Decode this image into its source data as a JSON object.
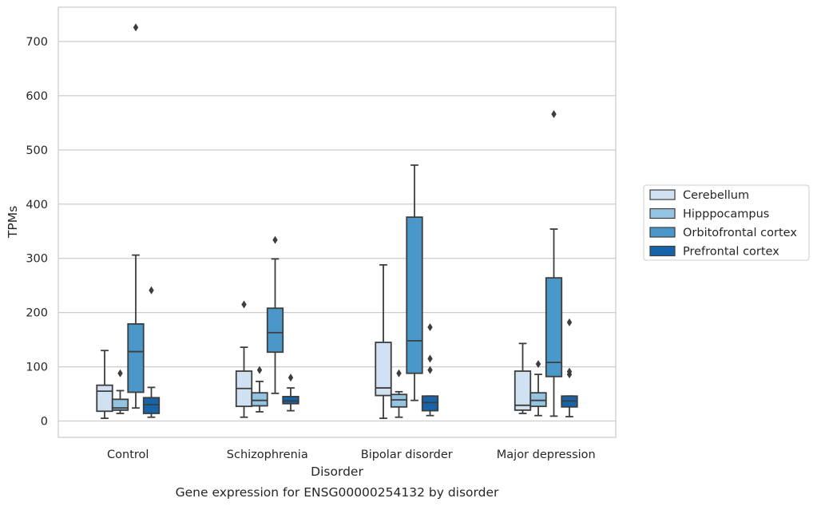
{
  "chart_data": {
    "type": "box",
    "xlabel": "Disorder",
    "ylabel": "TPMs",
    "caption": "Gene expression for ENSG00000254132 by disorder",
    "ylim": [
      -30,
      765
    ],
    "yticks": [
      0,
      100,
      200,
      300,
      400,
      500,
      600,
      700
    ],
    "ytick_labels": [
      "0",
      "100",
      "200",
      "300",
      "400",
      "500",
      "600",
      "700"
    ],
    "grid": "horizontal",
    "legend_position": "right",
    "categories": [
      "Control",
      "Schizophrenia",
      "Bipolar disorder",
      "Major depression"
    ],
    "series": [
      {
        "name": "Cerebellum",
        "color": "#d0e1f2",
        "boxes": [
          {
            "whislo": 5,
            "q1": 18,
            "med": 55,
            "q3": 66,
            "whishi": 130,
            "fliers": []
          },
          {
            "whislo": 7,
            "q1": 27,
            "med": 60,
            "q3": 92,
            "whishi": 136,
            "fliers": [
              215
            ]
          },
          {
            "whislo": 5,
            "q1": 47,
            "med": 61,
            "q3": 145,
            "whishi": 288,
            "fliers": []
          },
          {
            "whislo": 14,
            "q1": 20,
            "med": 29,
            "q3": 92,
            "whishi": 143,
            "fliers": []
          }
        ]
      },
      {
        "name": "Hipppocampus",
        "color": "#94c4df",
        "boxes": [
          {
            "whislo": 14,
            "q1": 20,
            "med": 24,
            "q3": 40,
            "whishi": 56,
            "fliers": [
              88
            ]
          },
          {
            "whislo": 17,
            "q1": 28,
            "med": 38,
            "q3": 52,
            "whishi": 73,
            "fliers": [
              94
            ]
          },
          {
            "whislo": 7,
            "q1": 26,
            "med": 39,
            "q3": 49,
            "whishi": 54,
            "fliers": [
              88
            ]
          },
          {
            "whislo": 10,
            "q1": 27,
            "med": 38,
            "q3": 52,
            "whishi": 86,
            "fliers": [
              105
            ]
          }
        ]
      },
      {
        "name": "Orbitofrontal cortex",
        "color": "#4a98c9",
        "boxes": [
          {
            "whislo": 24,
            "q1": 53,
            "med": 128,
            "q3": 179,
            "whishi": 306,
            "fliers": [
              726
            ]
          },
          {
            "whislo": 51,
            "q1": 127,
            "med": 163,
            "q3": 208,
            "whishi": 299,
            "fliers": [
              334
            ]
          },
          {
            "whislo": 38,
            "q1": 88,
            "med": 148,
            "q3": 376,
            "whishi": 472,
            "fliers": []
          },
          {
            "whislo": 9,
            "q1": 82,
            "med": 108,
            "q3": 264,
            "whishi": 354,
            "fliers": [
              566
            ]
          }
        ]
      },
      {
        "name": "Prefrontal cortex",
        "color": "#1764ab",
        "boxes": [
          {
            "whislo": 7,
            "q1": 14,
            "med": 30,
            "q3": 43,
            "whishi": 62,
            "fliers": [
              241
            ]
          },
          {
            "whislo": 19,
            "q1": 32,
            "med": 37,
            "q3": 45,
            "whishi": 61,
            "fliers": [
              80
            ]
          },
          {
            "whislo": 10,
            "q1": 19,
            "med": 34,
            "q3": 46,
            "whishi": 46,
            "fliers": [
              94,
              115,
              173
            ]
          },
          {
            "whislo": 8,
            "q1": 26,
            "med": 37,
            "q3": 46,
            "whishi": 46,
            "fliers": [
              86,
              91,
              182
            ]
          }
        ]
      }
    ]
  }
}
